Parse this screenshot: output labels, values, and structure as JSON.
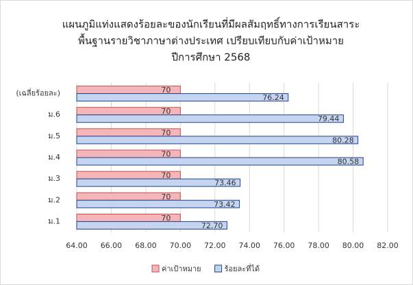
{
  "chart_data": {
    "type": "bar",
    "orientation": "horizontal",
    "title": [
      "แผนภูมิแท่งแสดงร้อยละของนักเรียนที่มีผลสัมฤทธิ์ทางการเรียนสาระ",
      "พื้นฐานรายวิชาภาษาต่างประเทศ เปรียบเทียบกับค่าเป้าหมาย",
      "ปีการศึกษา 2568"
    ],
    "categories": [
      "(เฉลี่ยร้อยละ)",
      "ม.6",
      "ม.5",
      "ม.4",
      "ม.3",
      "ม.2",
      "ม.1"
    ],
    "series": [
      {
        "name": "ค่าเป้าหมาย",
        "color": "#f4b6b8",
        "edge": "#c0504d",
        "values": [
          70,
          70,
          70,
          70,
          70,
          70,
          70
        ]
      },
      {
        "name": "ร้อยละที่ได้",
        "color": "#c5d5ef",
        "edge": "#1f3f8f",
        "values": [
          76.24,
          79.44,
          80.28,
          80.58,
          73.46,
          73.42,
          72.7
        ],
        "value_labels": [
          "76.24",
          "79.44",
          "80.28",
          "80.58",
          "73.46",
          "73.42",
          "72.70"
        ]
      }
    ],
    "xlim": [
      64,
      82
    ],
    "xticks": [
      {
        "value": 64,
        "label": "64.00"
      },
      {
        "value": 66,
        "label": "66.00"
      },
      {
        "value": 68,
        "label": "68.00"
      },
      {
        "value": 70,
        "label": "70.00"
      },
      {
        "value": 72,
        "label": "72.00"
      },
      {
        "value": 74,
        "label": "74.00"
      },
      {
        "value": 76,
        "label": "76.00"
      },
      {
        "value": 78,
        "label": "78.00"
      },
      {
        "value": 80,
        "label": "80.00"
      },
      {
        "value": 82,
        "label": "82.00"
      }
    ],
    "grid": true,
    "legend": "bottom"
  }
}
